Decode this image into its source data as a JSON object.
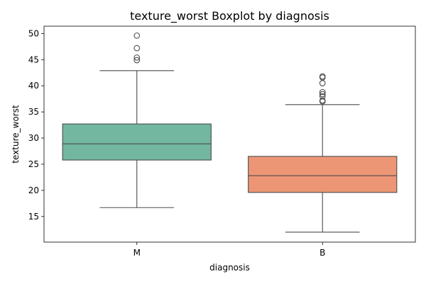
{
  "chart_data": {
    "type": "boxplot",
    "title": "texture_worst Boxplot by diagnosis",
    "xlabel": "diagnosis",
    "ylabel": "texture_worst",
    "ylim": [
      10.1,
      51.4
    ],
    "yticks": [
      15,
      20,
      25,
      30,
      35,
      40,
      45,
      50
    ],
    "grid": false,
    "categories": [
      "M",
      "B"
    ],
    "series": [
      {
        "category": "M",
        "color": "#73b7a0",
        "whisker_low": 16.7,
        "q1": 25.8,
        "median": 28.9,
        "q3": 32.7,
        "whisker_high": 42.9,
        "outliers": [
          44.9,
          45.4,
          47.2,
          49.6
        ]
      },
      {
        "category": "B",
        "color": "#ec9676",
        "whisker_low": 12.0,
        "q1": 19.6,
        "median": 22.8,
        "q3": 26.5,
        "whisker_high": 36.4,
        "outliers": [
          37.0,
          37.2,
          38.0,
          38.4,
          38.8,
          40.5,
          41.6,
          41.8
        ]
      }
    ]
  }
}
